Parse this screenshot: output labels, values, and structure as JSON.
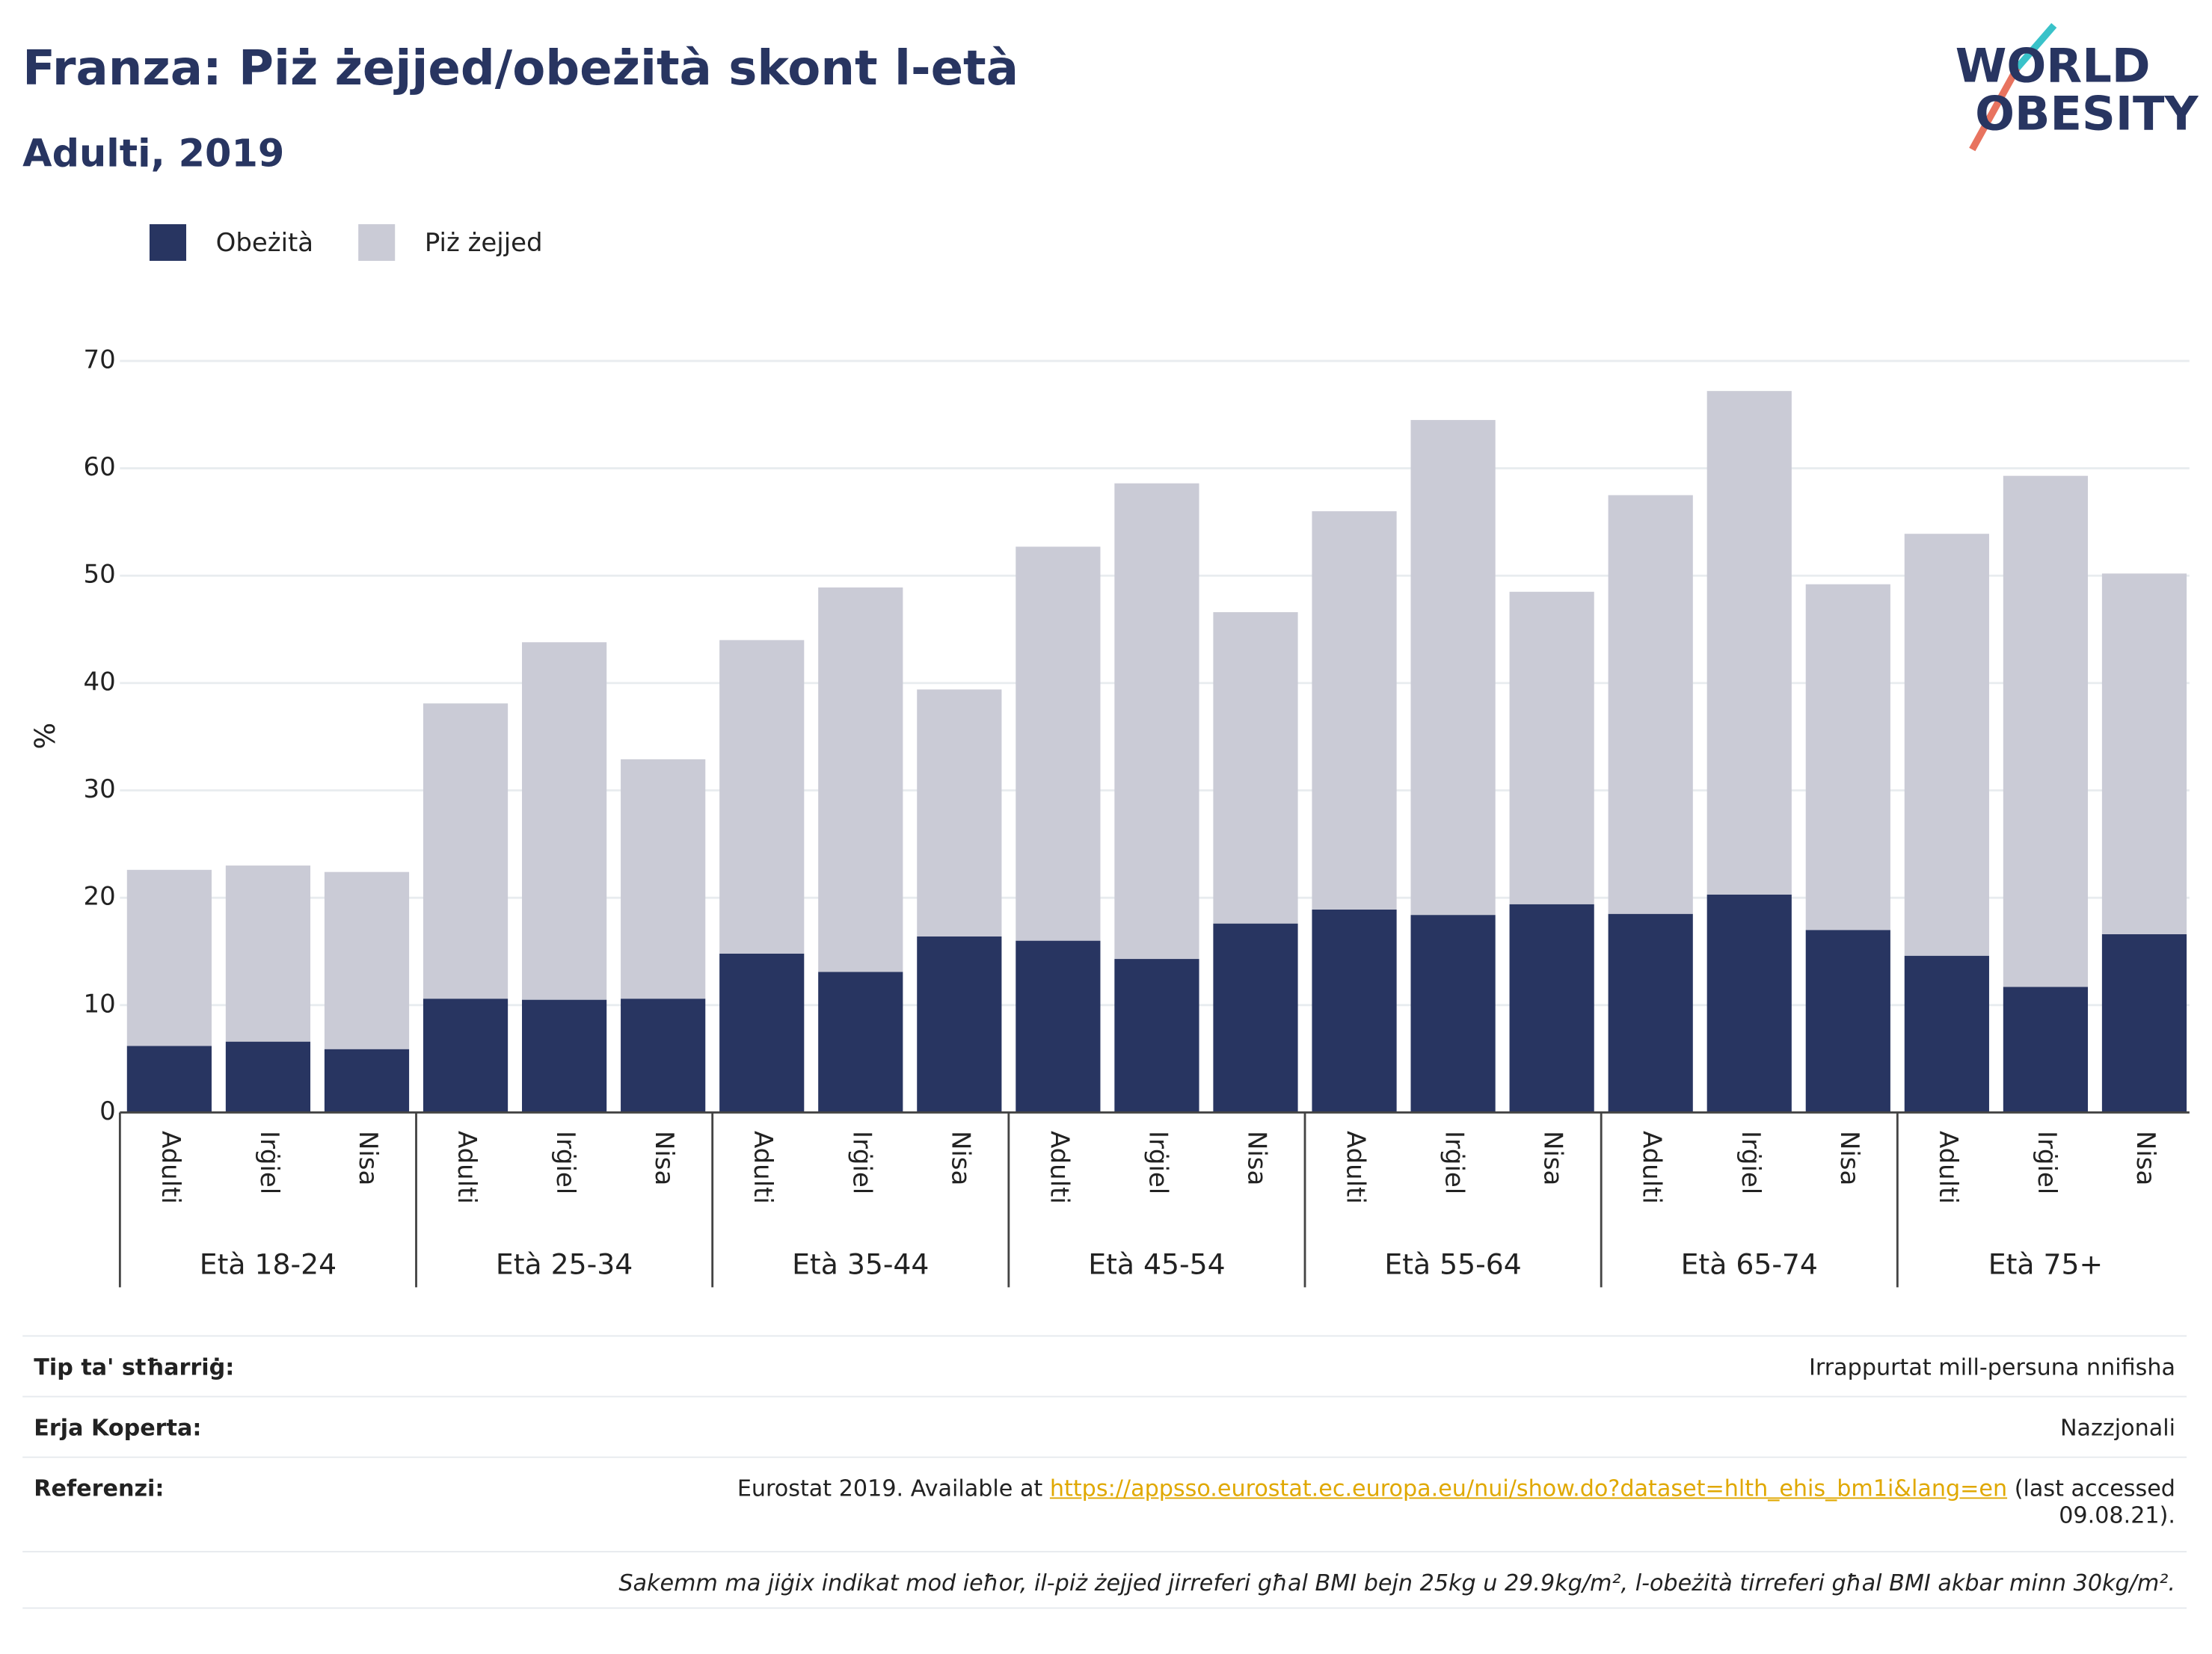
{
  "logo": [
    "WORLD",
    "OBESITY"
  ],
  "chart_data": {
    "type": "stacked_bar",
    "title": "Franza: Piż żejjed/obeżità skont l-età",
    "subtitle": "Adulti, 2019",
    "ylabel": "%",
    "categories": [
      "Adulti",
      "Irġiel",
      "Nisa",
      "Adulti",
      "Irġiel",
      "Nisa",
      "Adulti",
      "Irġiel",
      "Nisa",
      "Adulti",
      "Irġiel",
      "Nisa",
      "Adulti",
      "Irġiel",
      "Nisa",
      "Adulti",
      "Irġiel",
      "Nisa",
      "Adulti",
      "Irġiel",
      "Nisa"
    ],
    "groups": [
      "Età 18-24",
      "Età 25-34",
      "Età 35-44",
      "Età 45-54",
      "Età 55-64",
      "Età 65-74",
      "Età 75+"
    ],
    "series": [
      {
        "name": "Obeżità",
        "color": "#283561",
        "values": [
          6.2,
          6.6,
          5.9,
          10.6,
          10.5,
          10.6,
          14.8,
          13.1,
          16.4,
          16.0,
          14.3,
          17.6,
          18.9,
          18.4,
          19.4,
          18.5,
          20.3,
          17.0,
          14.6,
          11.7,
          16.6
        ]
      },
      {
        "name": "Piż żejjed",
        "color": "#cacbd6",
        "values": [
          16.4,
          16.4,
          16.5,
          27.5,
          33.3,
          22.3,
          29.2,
          35.8,
          23.0,
          36.7,
          44.3,
          29.0,
          37.1,
          46.1,
          29.1,
          39.0,
          46.9,
          32.2,
          39.3,
          47.6,
          33.6
        ]
      }
    ],
    "ylim": [
      0,
      70
    ],
    "yticks": [
      0,
      10,
      20,
      30,
      40,
      50,
      60,
      70
    ],
    "grid": true
  },
  "footer": {
    "rows": [
      [
        "Tip ta' stħarriġ:",
        "Irrappurtat mill-persuna nnifisha"
      ],
      [
        "Erja Koperta:",
        "Nazzjonali"
      ]
    ],
    "reference": {
      "label": "Referenzi:",
      "prefix": "Eurostat 2019. Available at",
      "url": "https://appsso.eurostat.ec.europa.eu/nui/show.do?dataset=hlth_ehis_bm1i&lang=en",
      "suffix": "(last accessed 09.08.21)."
    },
    "note": "Sakemm ma jiġix indikat mod ieħor, il-piż żejjed jirreferi għal BMI bejn 25kg u 29.9kg/m², l-obeżità tirreferi għal BMI akbar minn 30kg/m²."
  }
}
